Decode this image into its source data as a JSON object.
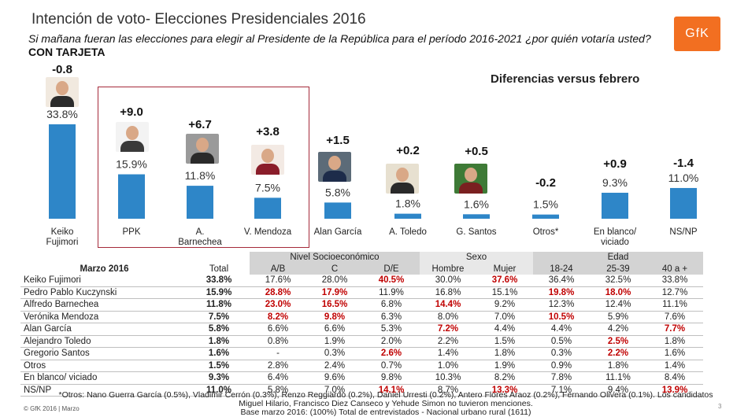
{
  "title": "Intención de voto- Elecciones Presidenciales 2016",
  "subtitle": "Si mañana fueran las elecciones para elegir al Presidente de la República para el período 2016-2021 ¿por quién votaría usted?",
  "subtitle_bold": "CON TARJETA",
  "logo_text": "GfK",
  "diff_title": "Diferencias versus febrero",
  "chart_data": {
    "type": "bar",
    "title": "Intención de voto- Elecciones Presidenciales 2016",
    "categories": [
      "Keiko Fujimori",
      "PPK",
      "A. Barnechea",
      "V. Mendoza",
      "Alan García",
      "A. Toledo",
      "G. Santos",
      "Otros*",
      "En blanco/ viciado",
      "NS/NP"
    ],
    "values": [
      33.8,
      15.9,
      11.8,
      7.5,
      5.8,
      1.8,
      1.6,
      1.5,
      9.3,
      11.0
    ],
    "value_labels": [
      "33.8%",
      "15.9%",
      "11.8%",
      "7.5%",
      "5.8%",
      "1.8%",
      "1.6%",
      "1.5%",
      "9.3%",
      "11.0%"
    ],
    "differences": [
      "-0.8",
      "+9.0",
      "+6.7",
      "+3.8",
      "+1.5",
      "+0.2",
      "+0.5",
      "-0.2",
      "+0.9",
      "-1.4"
    ],
    "xlabel": "",
    "ylabel": "",
    "ylim": [
      0,
      36
    ],
    "grid": false,
    "bar_color": "#2e86c8"
  },
  "table": {
    "title": "Marzo 2016",
    "total_label": "Total",
    "groups": [
      "Nivel Socioeconómico",
      "Sexo",
      "Edad"
    ],
    "columns": [
      "A/B",
      "C",
      "D/E",
      "Hombre",
      "Mujer",
      "18-24",
      "25-39",
      "40 a +"
    ],
    "rows": [
      {
        "name": "Keiko Fujimori",
        "total": "33.8%",
        "values": [
          "17.6%",
          "28.0%",
          "40.5%",
          "30.0%",
          "37.6%",
          "36.4%",
          "32.5%",
          "33.8%"
        ],
        "highlight": [
          false,
          false,
          true,
          false,
          true,
          false,
          false,
          false
        ]
      },
      {
        "name": "Pedro Pablo Kuczynski",
        "total": "15.9%",
        "values": [
          "28.8%",
          "17.9%",
          "11.9%",
          "16.8%",
          "15.1%",
          "19.8%",
          "18.0%",
          "12.7%"
        ],
        "highlight": [
          true,
          true,
          false,
          false,
          false,
          true,
          true,
          false
        ]
      },
      {
        "name": "Alfredo Barnechea",
        "total": "11.8%",
        "values": [
          "23.0%",
          "16.5%",
          "6.8%",
          "14.4%",
          "9.2%",
          "12.3%",
          "12.4%",
          "11.1%"
        ],
        "highlight": [
          true,
          true,
          false,
          true,
          false,
          false,
          false,
          false
        ]
      },
      {
        "name": "Verónika Mendoza",
        "total": "7.5%",
        "values": [
          "8.2%",
          "9.8%",
          "6.3%",
          "8.0%",
          "7.0%",
          "10.5%",
          "5.9%",
          "7.6%"
        ],
        "highlight": [
          true,
          true,
          false,
          false,
          false,
          true,
          false,
          false
        ]
      },
      {
        "name": "Alan García",
        "total": "5.8%",
        "values": [
          "6.6%",
          "6.6%",
          "5.3%",
          "7.2%",
          "4.4%",
          "4.4%",
          "4.2%",
          "7.7%"
        ],
        "highlight": [
          false,
          false,
          false,
          true,
          false,
          false,
          false,
          true
        ]
      },
      {
        "name": "Alejandro Toledo",
        "total": "1.8%",
        "values": [
          "0.8%",
          "1.9%",
          "2.0%",
          "2.2%",
          "1.5%",
          "0.5%",
          "2.5%",
          "1.8%"
        ],
        "highlight": [
          false,
          false,
          false,
          false,
          false,
          false,
          true,
          false
        ]
      },
      {
        "name": "Gregorio Santos",
        "total": "1.6%",
        "values": [
          "-",
          "0.3%",
          "2.6%",
          "1.4%",
          "1.8%",
          "0.3%",
          "2.2%",
          "1.6%"
        ],
        "highlight": [
          false,
          false,
          true,
          false,
          false,
          false,
          true,
          false
        ]
      },
      {
        "name": "Otros",
        "total": "1.5%",
        "values": [
          "2.8%",
          "2.4%",
          "0.7%",
          "1.0%",
          "1.9%",
          "0.9%",
          "1.8%",
          "1.4%"
        ],
        "highlight": [
          false,
          false,
          false,
          false,
          false,
          false,
          false,
          false
        ]
      },
      {
        "name": "En blanco/ viciado",
        "total": "9.3%",
        "values": [
          "6.4%",
          "9.6%",
          "9.8%",
          "10.3%",
          "8.2%",
          "7.8%",
          "11.1%",
          "8.4%"
        ],
        "highlight": [
          false,
          false,
          false,
          false,
          false,
          false,
          false,
          false
        ]
      },
      {
        "name": "NS/NP",
        "total": "11.0%",
        "values": [
          "5.8%",
          "7.0%",
          "14.1%",
          "8.7%",
          "13.3%",
          "7.1%",
          "9.4%",
          "13.9%"
        ],
        "highlight": [
          false,
          false,
          true,
          false,
          true,
          false,
          false,
          true
        ]
      }
    ]
  },
  "footnote": "*Otros: Nano Guerra García (0.5%), Vladimir Cerrón (0.3%), Renzo Reggiardo (0.2%), Daniel Urresti (0.2%), Antero Flores Araoz (0.2%), Fernando Olivera (0.1%). Los candidatos Miguel Hilario, Francisco Diez Canseco y Yehude Simon no tuvieron menciones.",
  "base_note": "Base marzo 2016: (100%) Total de entrevistados - Nacional urbano rural  (1611)",
  "copyright": "© GfK 2016 | Marzo",
  "page_number": "3"
}
